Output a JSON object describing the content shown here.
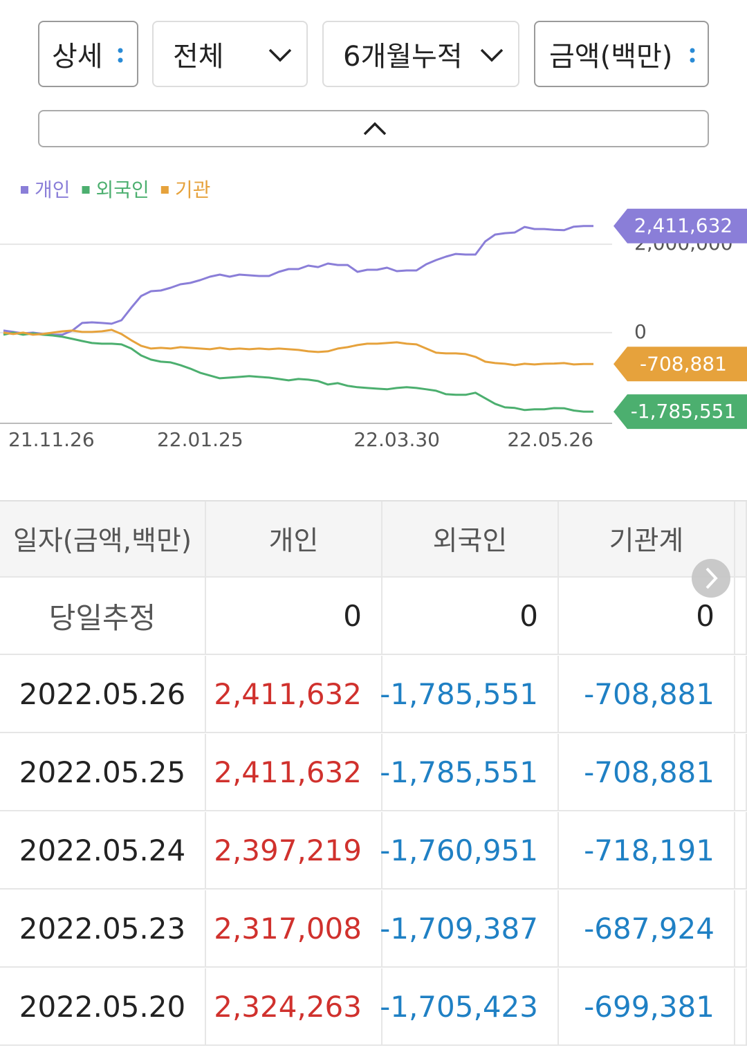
{
  "controls": {
    "view": "상세",
    "filter": "전체",
    "period": "6개월누적",
    "unit": "금액(백만)"
  },
  "chart_data": {
    "type": "line",
    "categories": [
      "21.11.26",
      null,
      null,
      null,
      null,
      null,
      null,
      null,
      null,
      null,
      null,
      null,
      null,
      null,
      null,
      null,
      null,
      null,
      null,
      null,
      "22.01.25",
      null,
      null,
      null,
      null,
      null,
      null,
      null,
      null,
      null,
      null,
      null,
      null,
      null,
      null,
      null,
      null,
      null,
      null,
      null,
      "22.03.30",
      null,
      null,
      null,
      null,
      null,
      null,
      null,
      null,
      null,
      null,
      null,
      null,
      null,
      null,
      null,
      null,
      null,
      null,
      null,
      "22.05.26"
    ],
    "ylim": [
      -2050000,
      2830000
    ],
    "yticks": [
      {
        "value": 2000000,
        "label": "2,000,000"
      },
      0
    ],
    "grid": true,
    "series": [
      {
        "name": "개인",
        "color": "#8a7ed8",
        "values": [
          47000,
          16000,
          -16000,
          0,
          -31000,
          -47000,
          -47000,
          47000,
          219000,
          234000,
          219000,
          203000,
          281000,
          563000,
          828000,
          938000,
          953000,
          1016000,
          1094000,
          1125000,
          1188000,
          1266000,
          1313000,
          1266000,
          1313000,
          1297000,
          1281000,
          1281000,
          1375000,
          1438000,
          1438000,
          1516000,
          1484000,
          1563000,
          1531000,
          1531000,
          1375000,
          1422000,
          1422000,
          1469000,
          1391000,
          1406000,
          1406000,
          1547000,
          1641000,
          1719000,
          1781000,
          1766000,
          1766000,
          2063000,
          2219000,
          2250000,
          2266000,
          2391000,
          2344000,
          2344000,
          2324263,
          2317008,
          2397219,
          2411632,
          2411632
        ],
        "value_labels": [
          null,
          null,
          null,
          null,
          null,
          null,
          null,
          null,
          null,
          null,
          null,
          null,
          null,
          null,
          null,
          null,
          null,
          null,
          null,
          null,
          null,
          null,
          null,
          null,
          null,
          null,
          null,
          null,
          null,
          null,
          null,
          null,
          null,
          null,
          null,
          null,
          null,
          null,
          null,
          null,
          null,
          null,
          null,
          null,
          null,
          null,
          null,
          null,
          null,
          null,
          null,
          null,
          null,
          null,
          null,
          null,
          null,
          null,
          null,
          null,
          "2,411,632"
        ]
      },
      {
        "name": "외국인",
        "color": "#4caf6f",
        "values": [
          -47000,
          0,
          -47000,
          -16000,
          -47000,
          -63000,
          -94000,
          -141000,
          -188000,
          -234000,
          -250000,
          -250000,
          -266000,
          -359000,
          -516000,
          -609000,
          -656000,
          -672000,
          -734000,
          -813000,
          -906000,
          -969000,
          -1031000,
          -1016000,
          -1000000,
          -984000,
          -1000000,
          -1016000,
          -1047000,
          -1078000,
          -1047000,
          -1063000,
          -1094000,
          -1172000,
          -1141000,
          -1203000,
          -1234000,
          -1250000,
          -1266000,
          -1281000,
          -1250000,
          -1234000,
          -1250000,
          -1281000,
          -1313000,
          -1391000,
          -1406000,
          -1406000,
          -1359000,
          -1484000,
          -1609000,
          -1688000,
          -1703000,
          -1750000,
          -1734000,
          -1734000,
          -1705423,
          -1709387,
          -1760951,
          -1785551,
          -1785551
        ],
        "value_labels": [
          null,
          null,
          null,
          null,
          null,
          null,
          null,
          null,
          null,
          null,
          null,
          null,
          null,
          null,
          null,
          null,
          null,
          null,
          null,
          null,
          null,
          null,
          null,
          null,
          null,
          null,
          null,
          null,
          null,
          null,
          null,
          null,
          null,
          null,
          null,
          null,
          null,
          null,
          null,
          null,
          null,
          null,
          null,
          null,
          null,
          null,
          null,
          null,
          null,
          null,
          null,
          null,
          null,
          null,
          null,
          null,
          null,
          null,
          null,
          null,
          "-1,785,551"
        ]
      },
      {
        "name": "기관",
        "color": "#e6a23c",
        "values": [
          0,
          -31000,
          0,
          -47000,
          -31000,
          0,
          31000,
          47000,
          16000,
          16000,
          31000,
          63000,
          -31000,
          -172000,
          -297000,
          -359000,
          -344000,
          -359000,
          -328000,
          -344000,
          -359000,
          -375000,
          -344000,
          -375000,
          -359000,
          -375000,
          -359000,
          -375000,
          -359000,
          -375000,
          -391000,
          -422000,
          -438000,
          -422000,
          -359000,
          -328000,
          -281000,
          -250000,
          -250000,
          -234000,
          -219000,
          -250000,
          -266000,
          -359000,
          -453000,
          -469000,
          -469000,
          -484000,
          -547000,
          -656000,
          -688000,
          -703000,
          -734000,
          -703000,
          -719000,
          -703000,
          -699381,
          -687924,
          -718191,
          -708881,
          -708881
        ],
        "value_labels": [
          null,
          null,
          null,
          null,
          null,
          null,
          null,
          null,
          null,
          null,
          null,
          null,
          null,
          null,
          null,
          null,
          null,
          null,
          null,
          null,
          null,
          null,
          null,
          null,
          null,
          null,
          null,
          null,
          null,
          null,
          null,
          null,
          null,
          null,
          null,
          null,
          null,
          null,
          null,
          null,
          null,
          null,
          null,
          null,
          null,
          null,
          null,
          null,
          null,
          null,
          null,
          null,
          null,
          null,
          null,
          null,
          null,
          null,
          null,
          null,
          "-708,881"
        ]
      }
    ]
  },
  "table": {
    "header": [
      "일자(금액,백만)",
      "개인",
      "외국인",
      "기관계"
    ],
    "rows": [
      [
        "당일추정",
        "0",
        "0",
        "0"
      ],
      [
        "2022.05.26",
        "2,411,632",
        "-1,785,551",
        "-708,881"
      ],
      [
        "2022.05.25",
        "2,411,632",
        "-1,785,551",
        "-708,881"
      ],
      [
        "2022.05.24",
        "2,397,219",
        "-1,760,951",
        "-718,191"
      ],
      [
        "2022.05.23",
        "2,317,008",
        "-1,709,387",
        "-687,924"
      ],
      [
        "2022.05.20",
        "2,324,263",
        "-1,705,423",
        "-699,381"
      ]
    ]
  }
}
